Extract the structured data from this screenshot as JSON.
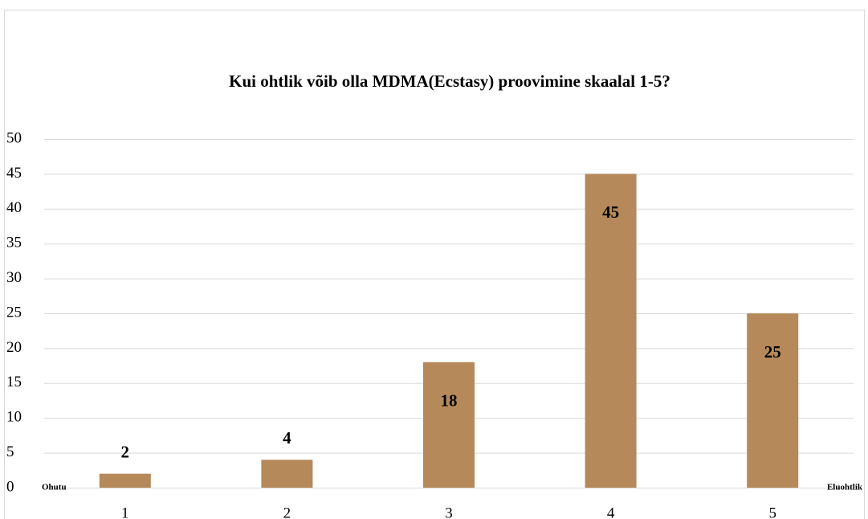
{
  "chart_data": {
    "type": "bar",
    "title": "Kui ohtlik võib olla MDMA(Ecstasy) proovimine skaalal 1-5?",
    "categories": [
      "1",
      "2",
      "3",
      "4",
      "5"
    ],
    "values": [
      2,
      4,
      18,
      45,
      25
    ],
    "color": "#b5895a",
    "ylim": [
      0,
      50
    ],
    "yticks": [
      0,
      5,
      10,
      15,
      20,
      25,
      30,
      35,
      40,
      45,
      50
    ],
    "grid": true,
    "annotations": [
      "Ohutu",
      "Eluohtlik"
    ]
  }
}
